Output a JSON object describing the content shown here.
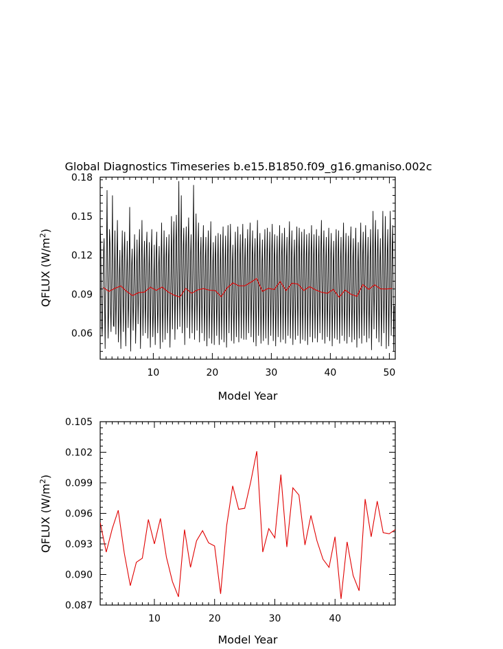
{
  "title": "Global Diagnostics Timeseries b.e15.B1850.f09_g16.gmaniso.002c",
  "colors": {
    "monthly": "#000000",
    "annual": "#e00000",
    "frame": "#000000"
  },
  "chart_data": [
    {
      "type": "line",
      "xlabel": "Model Year",
      "ylabel": "QFLUX (W/m",
      "ylabel_sup": "2",
      "ylabel_close": ")",
      "xlim": [
        1,
        51
      ],
      "ylim": [
        0.04,
        0.18
      ],
      "xticks": [
        10,
        20,
        30,
        40,
        50
      ],
      "xtick_labels": [
        "10",
        "20",
        "30",
        "40",
        "50"
      ],
      "yticks": [
        0.06,
        0.09,
        0.12,
        0.15,
        0.18
      ],
      "ytick_labels": [
        "0.06",
        "0.09",
        "0.12",
        "0.15",
        "0.18"
      ],
      "series": [
        {
          "kind": "monthly",
          "color": "#000000",
          "x_start": 1.0,
          "x_step": 0.0833,
          "values": [
            0.143,
            0.132,
            0.101,
            0.069,
            0.058,
            0.078,
            0.103,
            0.124,
            0.133,
            0.087,
            0.048,
            0.09,
            0.099,
            0.128,
            0.17,
            0.11,
            0.056,
            0.073,
            0.11,
            0.14,
            0.129,
            0.08,
            0.061,
            0.094,
            0.122,
            0.166,
            0.097,
            0.066,
            0.065,
            0.108,
            0.139,
            0.091,
            0.059,
            0.088,
            0.121,
            0.147,
            0.1,
            0.053,
            0.07,
            0.105,
            0.124,
            0.079,
            0.048,
            0.086,
            0.114,
            0.139,
            0.092,
            0.061,
            0.093,
            0.126,
            0.138,
            0.085,
            0.05,
            0.079,
            0.108,
            0.131,
            0.096,
            0.064,
            0.086,
            0.12,
            0.157,
            0.1,
            0.046,
            0.075,
            0.112,
            0.125,
            0.088,
            0.062,
            0.083,
            0.111,
            0.136,
            0.097,
            0.052,
            0.074,
            0.108,
            0.132,
            0.101,
            0.067,
            0.089,
            0.121,
            0.14,
            0.094,
            0.048,
            0.083,
            0.119,
            0.147,
            0.098,
            0.058,
            0.081,
            0.114,
            0.131,
            0.089,
            0.06,
            0.092,
            0.125,
            0.138,
            0.092,
            0.056,
            0.078,
            0.109,
            0.13,
            0.087,
            0.049,
            0.084,
            0.123,
            0.14,
            0.094,
            0.057,
            0.074,
            0.103,
            0.128,
            0.082,
            0.051,
            0.091,
            0.122,
            0.138,
            0.091,
            0.06,
            0.079,
            0.111,
            0.127,
            0.09,
            0.048,
            0.085,
            0.118,
            0.145,
            0.099,
            0.053,
            0.078,
            0.112,
            0.139,
            0.097,
            0.055,
            0.088,
            0.12,
            0.134,
            0.093,
            0.06,
            0.086,
            0.119,
            0.136,
            0.086,
            0.049,
            0.078,
            0.114,
            0.15,
            0.103,
            0.063,
            0.09,
            0.128,
            0.146,
            0.1,
            0.055,
            0.087,
            0.13,
            0.151,
            0.106,
            0.063,
            0.09,
            0.124,
            0.177,
            0.112,
            0.065,
            0.097,
            0.133,
            0.166,
            0.105,
            0.06,
            0.094,
            0.128,
            0.141,
            0.096,
            0.051,
            0.092,
            0.127,
            0.142,
            0.1,
            0.064,
            0.096,
            0.132,
            0.149,
            0.101,
            0.056,
            0.089,
            0.122,
            0.136,
            0.092,
            0.06,
            0.097,
            0.136,
            0.174,
            0.108,
            0.055,
            0.086,
            0.125,
            0.152,
            0.101,
            0.062,
            0.093,
            0.128,
            0.145,
            0.095,
            0.053,
            0.087,
            0.12,
            0.134,
            0.091,
            0.06,
            0.092,
            0.126,
            0.143,
            0.096,
            0.054,
            0.081,
            0.118,
            0.134,
            0.091,
            0.05,
            0.085,
            0.124,
            0.139,
            0.094,
            0.056,
            0.087,
            0.121,
            0.146,
            0.097,
            0.052,
            0.079,
            0.114,
            0.13,
            0.089,
            0.051,
            0.088,
            0.119,
            0.135,
            0.092,
            0.058,
            0.084,
            0.118,
            0.137,
            0.093,
            0.051,
            0.08,
            0.113,
            0.136,
            0.09,
            0.055,
            0.087,
            0.122,
            0.142,
            0.094,
            0.053,
            0.083,
            0.116,
            0.135,
            0.091,
            0.049,
            0.082,
            0.118,
            0.143,
            0.097,
            0.06,
            0.088,
            0.124,
            0.144,
            0.098,
            0.054,
            0.081,
            0.114,
            0.128,
            0.087,
            0.052,
            0.084,
            0.12,
            0.138,
            0.093,
            0.057,
            0.086,
            0.121,
            0.142,
            0.096,
            0.053,
            0.083,
            0.119,
            0.136,
            0.092,
            0.056,
            0.087,
            0.124,
            0.144,
            0.098,
            0.055,
            0.082,
            0.116,
            0.133,
            0.09,
            0.055,
            0.085,
            0.121,
            0.14,
            0.095,
            0.06,
            0.09,
            0.126,
            0.145,
            0.098,
            0.057,
            0.086,
            0.12,
            0.139,
            0.094,
            0.053,
            0.084,
            0.118,
            0.133,
            0.09,
            0.05,
            0.083,
            0.121,
            0.147,
            0.1,
            0.058,
            0.087,
            0.122,
            0.137,
            0.092,
            0.052,
            0.08,
            0.115,
            0.132,
            0.089,
            0.054,
            0.085,
            0.12,
            0.14,
            0.095,
            0.056,
            0.086,
            0.122,
            0.141,
            0.095,
            0.051,
            0.081,
            0.116,
            0.138,
            0.093,
            0.058,
            0.088,
            0.125,
            0.144,
            0.097,
            0.054,
            0.083,
            0.119,
            0.136,
            0.092,
            0.05,
            0.082,
            0.117,
            0.135,
            0.091,
            0.057,
            0.087,
            0.123,
            0.143,
            0.096,
            0.053,
            0.084,
            0.119,
            0.137,
            0.093,
            0.055,
            0.086,
            0.121,
            0.141,
            0.095,
            0.052,
            0.082,
            0.118,
            0.134,
            0.091,
            0.058,
            0.09,
            0.128,
            0.146,
            0.099,
            0.056,
            0.085,
            0.12,
            0.139,
            0.094,
            0.051,
            0.081,
            0.116,
            0.132,
            0.09,
            0.055,
            0.087,
            0.123,
            0.142,
            0.096,
            0.058,
            0.088,
            0.124,
            0.141,
            0.095,
            0.052,
            0.083,
            0.119,
            0.138,
            0.093,
            0.055,
            0.086,
            0.121,
            0.14,
            0.095,
            0.054,
            0.085,
            0.12,
            0.136,
            0.092,
            0.051,
            0.082,
            0.118,
            0.137,
            0.093,
            0.057,
            0.087,
            0.123,
            0.143,
            0.096,
            0.053,
            0.084,
            0.119,
            0.136,
            0.092,
            0.056,
            0.087,
            0.122,
            0.14,
            0.095,
            0.053,
            0.083,
            0.118,
            0.135,
            0.092,
            0.06,
            0.091,
            0.128,
            0.147,
            0.099,
            0.055,
            0.084,
            0.121,
            0.139,
            0.094,
            0.052,
            0.083,
            0.117,
            0.134,
            0.091,
            0.057,
            0.087,
            0.122,
            0.141,
            0.095,
            0.054,
            0.085,
            0.12,
            0.137,
            0.093,
            0.05,
            0.08,
            0.114,
            0.131,
            0.088,
            0.056,
            0.086,
            0.122,
            0.14,
            0.095,
            0.055,
            0.085,
            0.12,
            0.139,
            0.094,
            0.052,
            0.082,
            0.117,
            0.134,
            0.091,
            0.058,
            0.09,
            0.126,
            0.145,
            0.098,
            0.054,
            0.084,
            0.119,
            0.137,
            0.093,
            0.052,
            0.082,
            0.117,
            0.135,
            0.091,
            0.057,
            0.088,
            0.124,
            0.142,
            0.096,
            0.053,
            0.082,
            0.117,
            0.133,
            0.09,
            0.055,
            0.087,
            0.123,
            0.141,
            0.095,
            0.049,
            0.079,
            0.113,
            0.13,
            0.088,
            0.056,
            0.088,
            0.125,
            0.145,
            0.098,
            0.052,
            0.083,
            0.119,
            0.138,
            0.093,
            0.058,
            0.089,
            0.125,
            0.143,
            0.097,
            0.053,
            0.083,
            0.117,
            0.134,
            0.091,
            0.056,
            0.086,
            0.121,
            0.14,
            0.095,
            0.047,
            0.079,
            0.117,
            0.154,
            0.105,
            0.063,
            0.092,
            0.128,
            0.147,
            0.099,
            0.056,
            0.085,
            0.121,
            0.14,
            0.095,
            0.053,
            0.082,
            0.116,
            0.133,
            0.09,
            0.05,
            0.083,
            0.121,
            0.154,
            0.104,
            0.06,
            0.087,
            0.118,
            0.15,
            0.099,
            0.048,
            0.085,
            0.122,
            0.14,
            0.094,
            0.05,
            0.083,
            0.12,
            0.154,
            0.103,
            0.058,
            0.089,
            0.127,
            0.143,
            0.096,
            0.046,
            0.081
          ]
        },
        {
          "kind": "annual",
          "color": "#e00000",
          "x": [
            1.5,
            2.5,
            3.5,
            4.5,
            5.5,
            6.5,
            7.5,
            8.5,
            9.5,
            10.5,
            11.5,
            12.5,
            13.5,
            14.5,
            15.5,
            16.5,
            17.5,
            18.5,
            19.5,
            20.5,
            21.5,
            22.5,
            23.5,
            24.5,
            25.5,
            26.5,
            27.5,
            28.5,
            29.5,
            30.5,
            31.5,
            32.5,
            33.5,
            34.5,
            35.5,
            36.5,
            37.5,
            38.5,
            39.5,
            40.5,
            41.5,
            42.5,
            43.5,
            44.5,
            45.5,
            46.5,
            47.5,
            48.5,
            49.5,
            50.5
          ],
          "values": [
            0.0951,
            0.0922,
            0.0945,
            0.0963,
            0.0921,
            0.0889,
            0.0912,
            0.0916,
            0.0954,
            0.093,
            0.0955,
            0.0917,
            0.0893,
            0.0878,
            0.0944,
            0.0907,
            0.0933,
            0.0943,
            0.0931,
            0.0928,
            0.0881,
            0.0948,
            0.0987,
            0.0964,
            0.0965,
            0.0991,
            0.1021,
            0.0922,
            0.0945,
            0.0936,
            0.0998,
            0.0927,
            0.0985,
            0.0978,
            0.0929,
            0.0958,
            0.0933,
            0.0915,
            0.0907,
            0.0937,
            0.0876,
            0.0932,
            0.0899,
            0.0884,
            0.0974,
            0.0937,
            0.0972,
            0.0941,
            0.094,
            0.0944
          ]
        }
      ]
    },
    {
      "type": "line",
      "xlabel": "Model Year",
      "ylabel": "QFLUX (W/m",
      "ylabel_sup": "2",
      "ylabel_close": ")",
      "xlim": [
        1,
        50
      ],
      "ylim": [
        0.087,
        0.105
      ],
      "xticks": [
        10,
        20,
        30,
        40
      ],
      "xtick_labels": [
        "10",
        "20",
        "30",
        "40"
      ],
      "yticks": [
        0.087,
        0.09,
        0.093,
        0.096,
        0.099,
        0.102,
        0.105
      ],
      "ytick_labels": [
        "0.087",
        "0.090",
        "0.093",
        "0.096",
        "0.099",
        "0.102",
        "0.105"
      ],
      "series": [
        {
          "kind": "annual",
          "color": "#e00000",
          "x": [
            1,
            2,
            3,
            4,
            5,
            6,
            7,
            8,
            9,
            10,
            11,
            12,
            13,
            14,
            15,
            16,
            17,
            18,
            19,
            20,
            21,
            22,
            23,
            24,
            25,
            26,
            27,
            28,
            29,
            30,
            31,
            32,
            33,
            34,
            35,
            36,
            37,
            38,
            39,
            40,
            41,
            42,
            43,
            44,
            45,
            46,
            47,
            48,
            49,
            50
          ],
          "values": [
            0.0951,
            0.0922,
            0.0945,
            0.0963,
            0.0921,
            0.0889,
            0.0912,
            0.0916,
            0.0954,
            0.093,
            0.0955,
            0.0917,
            0.0893,
            0.0878,
            0.0944,
            0.0907,
            0.0933,
            0.0943,
            0.0931,
            0.0928,
            0.0881,
            0.0948,
            0.0987,
            0.0964,
            0.0965,
            0.0991,
            0.1021,
            0.0922,
            0.0945,
            0.0936,
            0.0998,
            0.0927,
            0.0985,
            0.0978,
            0.0929,
            0.0958,
            0.0933,
            0.0915,
            0.0907,
            0.0937,
            0.0876,
            0.0932,
            0.0899,
            0.0884,
            0.0974,
            0.0937,
            0.0972,
            0.0941,
            0.094,
            0.0944
          ]
        }
      ]
    }
  ]
}
